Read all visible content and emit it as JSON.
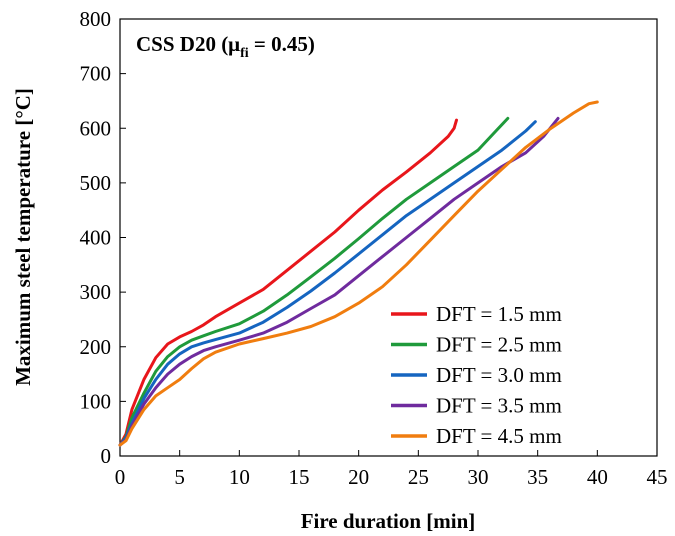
{
  "chart_data": {
    "type": "line",
    "title": "CSS D20 (μfi = 0.45)",
    "title_parts": {
      "main": "CSS D20 (μ",
      "sub": "fi",
      "tail": " = 0.45)"
    },
    "xlabel": "Fire duration [min]",
    "ylabel": "Maximum steel temperature [°C]",
    "xlim": [
      0,
      45
    ],
    "ylim": [
      0,
      800
    ],
    "xticks": [
      0,
      5,
      10,
      15,
      20,
      25,
      30,
      35,
      40,
      45
    ],
    "yticks": [
      0,
      100,
      200,
      300,
      400,
      500,
      600,
      700,
      800
    ],
    "grid": false,
    "legend_position": "bottom-right",
    "series": [
      {
        "name": "DFT = 1.5 mm",
        "color": "#e8161b",
        "points": [
          [
            0,
            20
          ],
          [
            0.5,
            40
          ],
          [
            1,
            85
          ],
          [
            2,
            140
          ],
          [
            3,
            180
          ],
          [
            4,
            205
          ],
          [
            5,
            218
          ],
          [
            6,
            228
          ],
          [
            7,
            240
          ],
          [
            8,
            255
          ],
          [
            10,
            280
          ],
          [
            12,
            305
          ],
          [
            14,
            340
          ],
          [
            16,
            375
          ],
          [
            18,
            410
          ],
          [
            20,
            450
          ],
          [
            22,
            487
          ],
          [
            24,
            520
          ],
          [
            26,
            555
          ],
          [
            27.5,
            585
          ],
          [
            28,
            600
          ],
          [
            28.2,
            615
          ]
        ]
      },
      {
        "name": "DFT = 2.5 mm",
        "color": "#1f9a3b",
        "points": [
          [
            0,
            20
          ],
          [
            0.5,
            35
          ],
          [
            1,
            70
          ],
          [
            2,
            115
          ],
          [
            3,
            155
          ],
          [
            4,
            182
          ],
          [
            5,
            200
          ],
          [
            6,
            212
          ],
          [
            7,
            220
          ],
          [
            8,
            228
          ],
          [
            10,
            242
          ],
          [
            12,
            265
          ],
          [
            14,
            295
          ],
          [
            16,
            328
          ],
          [
            18,
            362
          ],
          [
            20,
            398
          ],
          [
            22,
            435
          ],
          [
            24,
            470
          ],
          [
            26,
            500
          ],
          [
            28,
            530
          ],
          [
            30,
            560
          ],
          [
            31.5,
            595
          ],
          [
            32.5,
            618
          ]
        ]
      },
      {
        "name": "DFT = 3.0 mm",
        "color": "#1565c0",
        "points": [
          [
            0,
            20
          ],
          [
            0.5,
            33
          ],
          [
            1,
            60
          ],
          [
            2,
            105
          ],
          [
            3,
            140
          ],
          [
            4,
            168
          ],
          [
            5,
            187
          ],
          [
            6,
            200
          ],
          [
            7,
            207
          ],
          [
            8,
            213
          ],
          [
            10,
            225
          ],
          [
            12,
            245
          ],
          [
            14,
            272
          ],
          [
            16,
            302
          ],
          [
            18,
            335
          ],
          [
            20,
            370
          ],
          [
            22,
            405
          ],
          [
            24,
            440
          ],
          [
            26,
            470
          ],
          [
            28,
            500
          ],
          [
            30,
            530
          ],
          [
            32,
            560
          ],
          [
            34,
            595
          ],
          [
            34.8,
            612
          ]
        ]
      },
      {
        "name": "DFT = 3.5 mm",
        "color": "#6f2b9e",
        "points": [
          [
            0,
            20
          ],
          [
            0.5,
            30
          ],
          [
            1,
            55
          ],
          [
            2,
            95
          ],
          [
            3,
            125
          ],
          [
            4,
            150
          ],
          [
            5,
            168
          ],
          [
            6,
            182
          ],
          [
            7,
            193
          ],
          [
            8,
            200
          ],
          [
            10,
            212
          ],
          [
            12,
            225
          ],
          [
            14,
            245
          ],
          [
            16,
            270
          ],
          [
            18,
            295
          ],
          [
            20,
            330
          ],
          [
            22,
            365
          ],
          [
            24,
            400
          ],
          [
            26,
            435
          ],
          [
            28,
            470
          ],
          [
            30,
            500
          ],
          [
            32,
            530
          ],
          [
            34,
            555
          ],
          [
            35.5,
            585
          ],
          [
            36.7,
            618
          ]
        ]
      },
      {
        "name": "DFT = 4.5 mm",
        "color": "#f07d0f",
        "points": [
          [
            0,
            20
          ],
          [
            0.5,
            28
          ],
          [
            1,
            50
          ],
          [
            2,
            85
          ],
          [
            3,
            110
          ],
          [
            4,
            125
          ],
          [
            5,
            140
          ],
          [
            6,
            160
          ],
          [
            7,
            178
          ],
          [
            8,
            190
          ],
          [
            10,
            205
          ],
          [
            12,
            215
          ],
          [
            14,
            225
          ],
          [
            16,
            237
          ],
          [
            18,
            255
          ],
          [
            20,
            280
          ],
          [
            22,
            310
          ],
          [
            24,
            350
          ],
          [
            26,
            395
          ],
          [
            28,
            440
          ],
          [
            30,
            485
          ],
          [
            32,
            525
          ],
          [
            34,
            565
          ],
          [
            36,
            598
          ],
          [
            38,
            628
          ],
          [
            39.3,
            645
          ],
          [
            40,
            648
          ]
        ]
      }
    ]
  }
}
